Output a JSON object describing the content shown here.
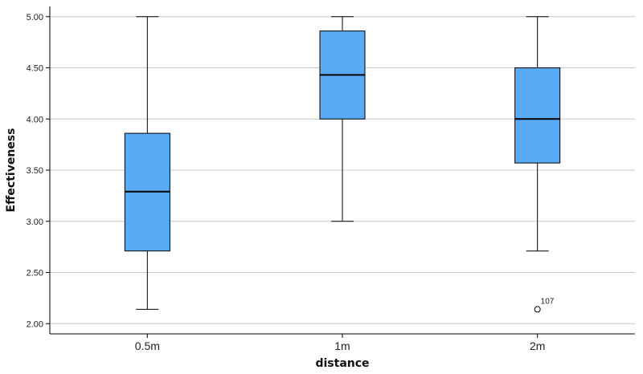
{
  "chart_data": {
    "type": "box",
    "title": "",
    "xlabel": "distance",
    "ylabel": "Effectiveness",
    "ylim": [
      1.9,
      5.1
    ],
    "yticks": [
      "2.00",
      "2.50",
      "3.00",
      "3.50",
      "4.00",
      "4.50",
      "5.00"
    ],
    "grid": "horizontal",
    "colors": {
      "box": "#5aabf6",
      "stroke": "#000000",
      "grid": "#c8c8c8"
    },
    "categories": [
      "0.5m",
      "1m",
      "2m"
    ],
    "boxes": [
      {
        "category": "0.5m",
        "min": 2.14,
        "q1": 2.71,
        "median": 3.29,
        "q3": 3.86,
        "max": 5.0,
        "outliers": []
      },
      {
        "category": "1m",
        "min": 3.0,
        "q1": 4.0,
        "median": 4.43,
        "q3": 4.86,
        "max": 5.0,
        "outliers": []
      },
      {
        "category": "2m",
        "min": 2.71,
        "q1": 3.57,
        "median": 4.0,
        "q3": 4.5,
        "max": 5.0,
        "outliers": [
          {
            "value": 2.14,
            "label": "107"
          }
        ]
      }
    ]
  }
}
